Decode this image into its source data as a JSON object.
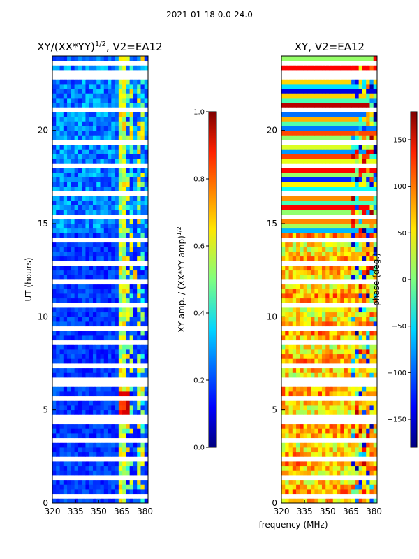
{
  "figure_title": "2021-01-18 0.0-24.0",
  "colors": {
    "background": "#ffffff",
    "gap": "#ffffff",
    "axis": "#000000"
  },
  "chart_data": [
    {
      "type": "heatmap",
      "title_prefix": "XY/(XX*YY)",
      "title_exponent": "1/2",
      "title_suffix": ", V2=EA12",
      "xlabel": "",
      "ylabel": "UT (hours)",
      "x_range": [
        320,
        382
      ],
      "x_ticks": [
        320,
        335,
        350,
        365,
        380
      ],
      "x_tick_labels": [
        "320",
        "335",
        "350",
        "365",
        "380"
      ],
      "y_range": [
        0,
        24
      ],
      "y_ticks": [
        0,
        5,
        10,
        15,
        20
      ],
      "y_tick_labels": [
        "0",
        "5",
        "10",
        "15",
        "20"
      ],
      "colormap": "jet",
      "colorbar": {
        "label": "XY amp. / (XX*YY amp)",
        "label_exponent": "1/2",
        "range": [
          0.0,
          1.0
        ],
        "ticks": [
          0.0,
          0.2,
          0.4,
          0.6,
          0.8,
          1.0
        ],
        "tick_labels": [
          "0.0",
          "0.2",
          "0.4",
          "0.6",
          "0.8",
          "1.0"
        ]
      }
    },
    {
      "type": "heatmap",
      "title_prefix": "XY, V2=EA12",
      "title_exponent": "",
      "title_suffix": "",
      "xlabel": "frequency (MHz)",
      "ylabel": "",
      "x_range": [
        320,
        382
      ],
      "x_ticks": [
        320,
        335,
        350,
        365,
        380
      ],
      "x_tick_labels": [
        "320",
        "335",
        "350",
        "365",
        "380"
      ],
      "y_range": [
        0,
        24
      ],
      "y_ticks": [
        0,
        5,
        10,
        15,
        20
      ],
      "y_tick_labels": [
        "0",
        "5",
        "10",
        "15",
        "20"
      ],
      "colormap": "jet",
      "colorbar": {
        "label": "phase (deg.)",
        "label_exponent": "",
        "range": [
          -180,
          180
        ],
        "ticks": [
          -150,
          -100,
          -50,
          0,
          50,
          100,
          150
        ],
        "tick_labels": [
          "−150",
          "−100",
          "−50",
          "0",
          "50",
          "100",
          "150"
        ]
      }
    }
  ]
}
